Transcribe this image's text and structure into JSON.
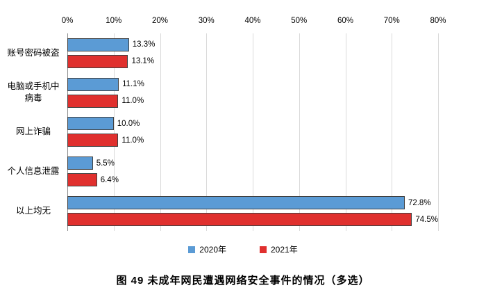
{
  "caption": "图 49 未成年网民遭遇网络安全事件的情况（多选）",
  "chart_data": {
    "type": "bar",
    "orientation": "horizontal",
    "title": "图 49 未成年网民遭遇网络安全事件的情况（多选）",
    "categories": [
      "账号密码被盗",
      "电脑或手机中病毒",
      "网上诈骗",
      "个人信息泄露",
      "以上均无"
    ],
    "series": [
      {
        "name": "2020年",
        "color": "#5B9BD5",
        "values": [
          13.3,
          11.1,
          10.0,
          5.5,
          72.8
        ]
      },
      {
        "name": "2021年",
        "color": "#E0302E",
        "values": [
          13.1,
          11.0,
          11.0,
          6.4,
          74.5
        ]
      }
    ],
    "value_label_format": "percent_one_decimal",
    "xlim": [
      0,
      80
    ],
    "x_ticks": [
      "0%",
      "10%",
      "20%",
      "30%",
      "40%",
      "50%",
      "60%",
      "70%",
      "80%"
    ],
    "x_axis_position": "top",
    "grid": true,
    "legend_position": "bottom"
  }
}
